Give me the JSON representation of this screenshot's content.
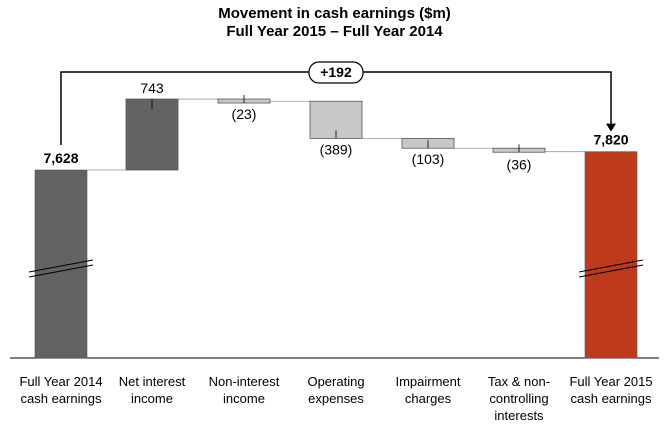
{
  "chart_data": {
    "type": "bar",
    "subtype": "waterfall",
    "title": "Movement in cash earnings ($m)",
    "subtitle": "Full Year 2015 – Full Year 2014",
    "unit": "$m",
    "axis_break": true,
    "grid": false,
    "categories": [
      "Full Year 2014 cash earnings",
      "Net interest income",
      "Non-interest income",
      "Operating expenses",
      "Impairment charges",
      "Tax & non-controlling interests",
      "Full Year 2015 cash earnings"
    ],
    "category_lines": [
      [
        "Full Year 2014",
        "cash earnings"
      ],
      [
        "Net interest",
        "income"
      ],
      [
        "Non-interest",
        "income"
      ],
      [
        "Operating",
        "expenses"
      ],
      [
        "Impairment",
        "charges"
      ],
      [
        "Tax & non-",
        "controlling",
        "interests"
      ],
      [
        "Full Year 2015",
        "cash earnings"
      ]
    ],
    "values": [
      7628,
      743,
      -23,
      -389,
      -103,
      -36,
      7820
    ],
    "bar_kinds": [
      "total",
      "delta",
      "delta",
      "delta",
      "delta",
      "delta",
      "total"
    ],
    "data_labels": [
      "7,628",
      "743",
      "(23)",
      "(389)",
      "(103)",
      "(36)",
      "7,820"
    ],
    "total_change": {
      "label": "+192",
      "value": 192
    },
    "colors": {
      "start_total": "#636363",
      "increase": "#636363",
      "decrease": "#c8c8c8",
      "end_total": "#be3a1c",
      "outline": "#555555",
      "connector": "#000000"
    }
  }
}
